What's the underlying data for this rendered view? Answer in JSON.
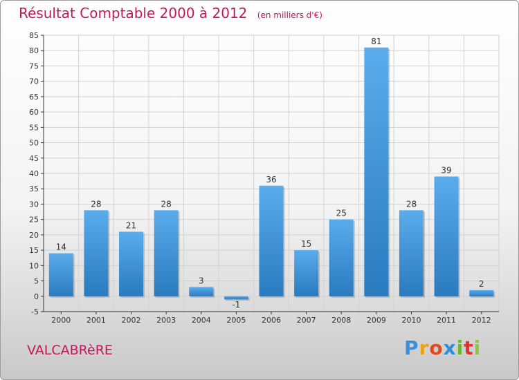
{
  "chart_data": {
    "type": "bar",
    "title": "Résultat Comptable 2000 à 2012",
    "subtitle": "(en milliers d'€)",
    "categories": [
      "2000",
      "2001",
      "2002",
      "2003",
      "2004",
      "2005",
      "2006",
      "2007",
      "2008",
      "2009",
      "2010",
      "2011",
      "2012"
    ],
    "values": [
      14,
      28,
      21,
      28,
      3,
      -1,
      36,
      15,
      25,
      81,
      28,
      39,
      2
    ],
    "ylim": [
      -5,
      85
    ],
    "yticks": [
      -5,
      0,
      5,
      10,
      15,
      20,
      25,
      30,
      35,
      40,
      45,
      50,
      55,
      60,
      65,
      70,
      75,
      80,
      85
    ],
    "grid": true,
    "legend": "none",
    "bar_color_top": "#5aacec",
    "bar_color_bottom": "#2a7abf"
  },
  "commune_name": "VALCABRèRE",
  "brand": {
    "letters": [
      "P",
      "r",
      "o",
      "x",
      "i",
      "t",
      "i"
    ],
    "colors": [
      "#3a8fd8",
      "#e8a21a",
      "#e04b1d",
      "#2f8fd6",
      "#6cb632",
      "#e2332a",
      "#8cc63f"
    ]
  },
  "colors": {
    "title": "#c0185a",
    "grid": "#d2d2d2",
    "axis": "#333333"
  }
}
